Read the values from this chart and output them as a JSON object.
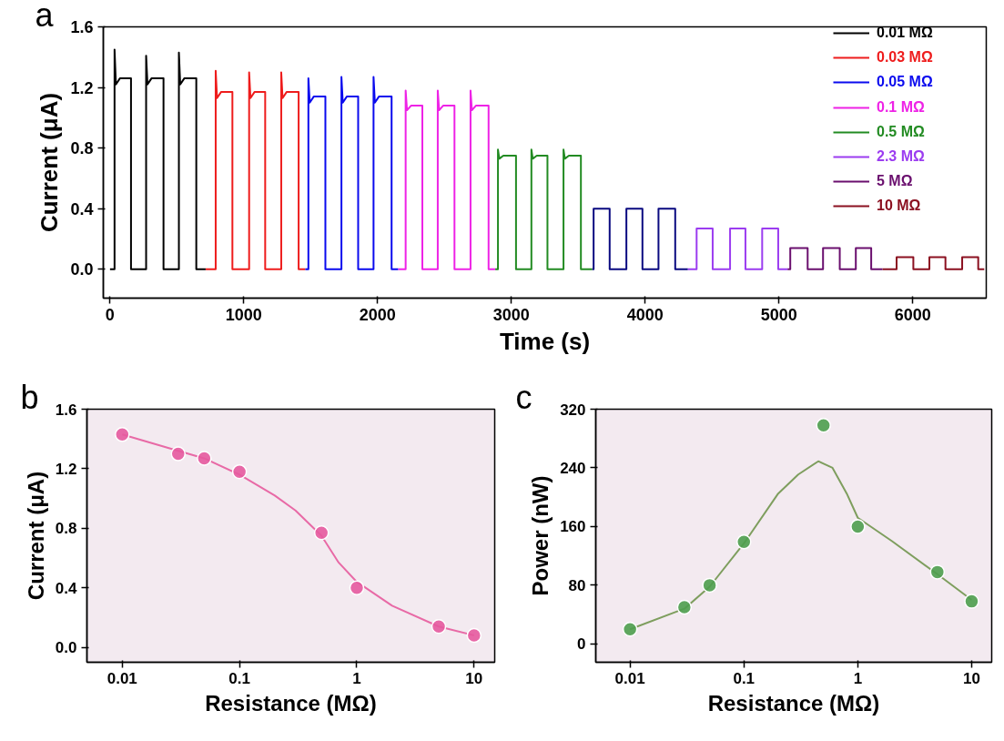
{
  "chart_data": [
    {
      "type": "line",
      "xlabel": "Time (s)",
      "ylabel": "Current (μA)",
      "annotations": [
        "a"
      ],
      "xlim": [
        -50,
        6550
      ],
      "ylim": [
        -0.19,
        1.6
      ],
      "xticks": [
        0,
        1000,
        2000,
        3000,
        4000,
        5000,
        6000
      ],
      "yticks": [
        {
          "value": 0,
          "label": "0.0"
        },
        {
          "value": 0.4,
          "label": "0.4"
        },
        {
          "value": 0.8,
          "label": "0.8"
        },
        {
          "value": 1.2,
          "label": "1.2"
        },
        {
          "value": 1.6,
          "label": "1.6"
        }
      ],
      "grid": false,
      "legend": "top right",
      "marker": "none",
      "line_style": "solid",
      "series": [
        {
          "name": "0.01 MΩ",
          "color": "#000000",
          "x": [
            0,
            34,
            34,
            44,
            74,
            157,
            157,
            270,
            270,
            280,
            310,
            400,
            400,
            515,
            515,
            525,
            555,
            645,
            645,
            715
          ],
          "values": [
            0,
            0,
            1.45,
            1.22,
            1.26,
            1.26,
            0,
            0,
            1.41,
            1.22,
            1.26,
            1.26,
            0,
            0,
            1.43,
            1.22,
            1.26,
            1.26,
            0,
            0
          ]
        },
        {
          "name": "0.03 MΩ",
          "color": "#ee1c1c",
          "x": [
            715,
            790,
            790,
            800,
            830,
            915,
            915,
            1040,
            1040,
            1050,
            1080,
            1160,
            1160,
            1280,
            1280,
            1290,
            1320,
            1410,
            1410,
            1460
          ],
          "values": [
            0,
            0,
            1.31,
            1.13,
            1.17,
            1.17,
            0,
            0,
            1.3,
            1.13,
            1.17,
            1.17,
            0,
            0,
            1.3,
            1.13,
            1.17,
            1.17,
            0,
            0
          ]
        },
        {
          "name": "0.05 MΩ",
          "color": "#0a0aee",
          "x": [
            1460,
            1483,
            1483,
            1493,
            1523,
            1610,
            1610,
            1730,
            1730,
            1740,
            1770,
            1855,
            1855,
            1970,
            1970,
            1980,
            2010,
            2105,
            2105,
            2155
          ],
          "values": [
            0,
            0,
            1.26,
            1.1,
            1.14,
            1.14,
            0,
            0,
            1.27,
            1.1,
            1.14,
            1.14,
            0,
            0,
            1.27,
            1.1,
            1.14,
            1.14,
            0,
            0
          ]
        },
        {
          "name": "0.1 MΩ",
          "color": "#ee22e6",
          "x": [
            2155,
            2210,
            2210,
            2220,
            2250,
            2335,
            2335,
            2450,
            2450,
            2460,
            2490,
            2575,
            2575,
            2695,
            2695,
            2705,
            2735,
            2830,
            2830,
            2880
          ],
          "values": [
            0,
            0,
            1.18,
            1.05,
            1.08,
            1.08,
            0,
            0,
            1.18,
            1.05,
            1.08,
            1.08,
            0,
            0,
            1.18,
            1.05,
            1.08,
            1.08,
            0,
            0
          ]
        },
        {
          "name": "0.5 MΩ",
          "color": "#228b22",
          "x": [
            2880,
            2900,
            2900,
            2910,
            2940,
            3035,
            3035,
            3150,
            3150,
            3160,
            3190,
            3270,
            3270,
            3390,
            3390,
            3400,
            3430,
            3520,
            3520,
            3605
          ],
          "values": [
            0,
            0,
            0.79,
            0.73,
            0.75,
            0.75,
            0,
            0,
            0.79,
            0.73,
            0.75,
            0.75,
            0,
            0,
            0.79,
            0.73,
            0.75,
            0.75,
            0,
            0
          ]
        },
        {
          "color": "#0a0a80",
          "x": [
            3605,
            3615,
            3615,
            3735,
            3735,
            3860,
            3860,
            3980,
            3980,
            4100,
            4100,
            4225,
            4225,
            4320
          ],
          "values": [
            0,
            0,
            0.4,
            0.4,
            0,
            0,
            0.4,
            0.4,
            0,
            0,
            0.4,
            0.4,
            0,
            0
          ]
        },
        {
          "name": "2.3 MΩ",
          "color": "#9b3cf0",
          "x": [
            4320,
            4385,
            4385,
            4505,
            4505,
            4635,
            4635,
            4750,
            4750,
            4875,
            4875,
            4995,
            4995,
            5065
          ],
          "values": [
            0,
            0,
            0.27,
            0.27,
            0,
            0,
            0.27,
            0.27,
            0,
            0,
            0.27,
            0.27,
            0,
            0
          ]
        },
        {
          "name": "5 MΩ",
          "color": "#6a0f6e",
          "x": [
            5065,
            5085,
            5085,
            5215,
            5215,
            5330,
            5330,
            5455,
            5455,
            5575,
            5575,
            5690,
            5690,
            5775
          ],
          "values": [
            0,
            0,
            0.14,
            0.14,
            0,
            0,
            0.14,
            0.14,
            0,
            0,
            0.14,
            0.14,
            0,
            0
          ]
        },
        {
          "name": "10 MΩ",
          "color": "#8b1020",
          "x": [
            5775,
            5880,
            5880,
            6005,
            6005,
            6125,
            6125,
            6245,
            6245,
            6370,
            6370,
            6490,
            6490,
            6535
          ],
          "values": [
            0,
            0,
            0.08,
            0.08,
            0,
            0,
            0.08,
            0.08,
            0,
            0,
            0.08,
            0.08,
            0,
            0
          ]
        }
      ]
    },
    {
      "type": "scatter",
      "xlabel": "Resistance (MΩ)",
      "ylabel": "Current (μA)",
      "annotations": [
        "b"
      ],
      "log": "x",
      "xlim": [
        0.005,
        15
      ],
      "ylim": [
        -0.1,
        1.6
      ],
      "xticks": [
        0.01,
        0.1,
        1,
        10
      ],
      "yticks": [
        {
          "value": 0,
          "label": "0.0"
        },
        {
          "value": 0.4,
          "label": "0.4"
        },
        {
          "value": 0.8,
          "label": "0.8"
        },
        {
          "value": 1.2,
          "label": "1.2"
        },
        {
          "value": 1.6,
          "label": "1.6"
        }
      ],
      "grid": false,
      "marker": "circle",
      "series": [
        {
          "type": "line",
          "color": "#e86aa6",
          "marker": "none",
          "x": [
            0.01,
            0.03,
            0.05,
            0.1,
            0.2,
            0.3,
            0.5,
            0.7,
            1,
            2,
            5,
            10
          ],
          "values": [
            1.43,
            1.32,
            1.27,
            1.16,
            1.02,
            0.92,
            0.75,
            0.57,
            0.44,
            0.28,
            0.14,
            0.08
          ]
        },
        {
          "color": "#e65a9e",
          "x": [
            0.01,
            0.03,
            0.05,
            0.1,
            0.5,
            1,
            5,
            10
          ],
          "values": [
            1.43,
            1.3,
            1.27,
            1.18,
            0.77,
            0.4,
            0.14,
            0.08
          ]
        }
      ]
    },
    {
      "type": "scatter",
      "xlabel": "Resistance (MΩ)",
      "ylabel": "Power (nW)",
      "annotations": [
        "c"
      ],
      "log": "x",
      "xlim": [
        0.005,
        15
      ],
      "ylim": [
        -25,
        320
      ],
      "xticks": [
        0.01,
        0.1,
        1,
        10
      ],
      "yticks": [
        0,
        80,
        160,
        240,
        320
      ],
      "grid": false,
      "marker": "circle",
      "series": [
        {
          "type": "line",
          "color": "#7e9e5e",
          "marker": "none",
          "x": [
            0.01,
            0.03,
            0.05,
            0.1,
            0.2,
            0.3,
            0.45,
            0.6,
            0.8,
            1,
            2,
            5,
            10
          ],
          "values": [
            20,
            48,
            78,
            137,
            205,
            231,
            249,
            240,
            205,
            172,
            140,
            95,
            60
          ]
        },
        {
          "color": "#4e9e4e",
          "x": [
            0.01,
            0.03,
            0.05,
            0.1,
            0.5,
            1,
            5,
            10
          ],
          "values": [
            20,
            50,
            80,
            139,
            298,
            160,
            98,
            58
          ]
        }
      ]
    }
  ]
}
